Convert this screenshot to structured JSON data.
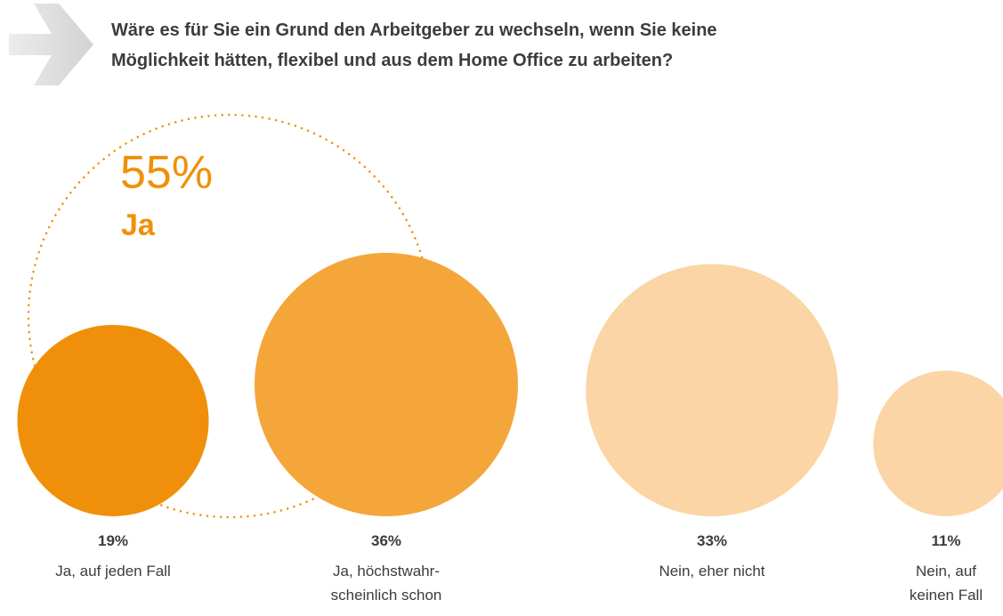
{
  "title_lines": [
    "Wäre es für Sie ein Grund den Arbeitgeber zu wechseln, wenn Sie keine",
    "Möglichkeit hätten, flexibel und aus dem Home Office zu arbeiten?"
  ],
  "summary": {
    "value": "55%",
    "label": "Ja"
  },
  "chart_data": {
    "type": "bubble",
    "categories": [
      {
        "pct": "19%",
        "label_lines": [
          "Ja, auf jeden Fall"
        ],
        "value": 19,
        "color": "#f0900a"
      },
      {
        "pct": "36%",
        "label_lines": [
          "Ja, höchstwahr-",
          "scheinlich schon"
        ],
        "value": 36,
        "color": "#f4a63a"
      },
      {
        "pct": "33%",
        "label_lines": [
          "Nein, eher nicht"
        ],
        "value": 33,
        "color": "#fbd5a5"
      },
      {
        "pct": "11%",
        "label_lines": [
          "Nein, auf",
          "keinen Fall"
        ],
        "value": 11,
        "color": "#fbd5a5"
      }
    ],
    "group": {
      "value": 55,
      "label": "Ja",
      "members": [
        "19%",
        "36%"
      ],
      "color": "#f0900a"
    }
  }
}
